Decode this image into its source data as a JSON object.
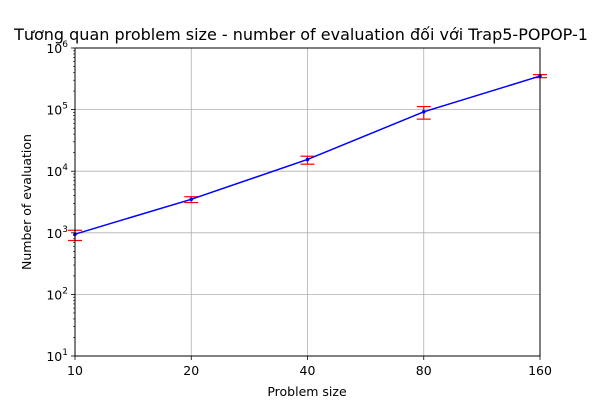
{
  "chart_data": {
    "type": "line",
    "title": "Tương quan problem size - number of evaluation đối với Trap5-POPOP-1",
    "xlabel": "Problem size",
    "ylabel": "Number of evaluation",
    "x_scale": "log2",
    "y_scale": "log10",
    "xlim": [
      10,
      160
    ],
    "ylim": [
      10,
      1000000
    ],
    "grid": true,
    "x": [
      10,
      20,
      40,
      80,
      160
    ],
    "x_ticks": [
      {
        "value": 10,
        "label": "10"
      },
      {
        "value": 20,
        "label": "20"
      },
      {
        "value": 40,
        "label": "40"
      },
      {
        "value": 80,
        "label": "80"
      },
      {
        "value": 160,
        "label": "160"
      }
    ],
    "y_ticks": [
      {
        "value": 10,
        "base": "10",
        "exp": "1"
      },
      {
        "value": 100,
        "base": "10",
        "exp": "2"
      },
      {
        "value": 1000,
        "base": "10",
        "exp": "3"
      },
      {
        "value": 10000,
        "base": "10",
        "exp": "4"
      },
      {
        "value": 100000,
        "base": "10",
        "exp": "5"
      },
      {
        "value": 1000000,
        "base": "10",
        "exp": "6"
      }
    ],
    "series": [
      {
        "color": "#0000ff",
        "values": [
          950,
          3500,
          15500,
          92000,
          350000
        ],
        "error_low": [
          750,
          3100,
          13000,
          70000,
          330000
        ],
        "error_high": [
          1100,
          3850,
          17500,
          112000,
          370000
        ],
        "error_color": "#ff0000"
      }
    ]
  }
}
